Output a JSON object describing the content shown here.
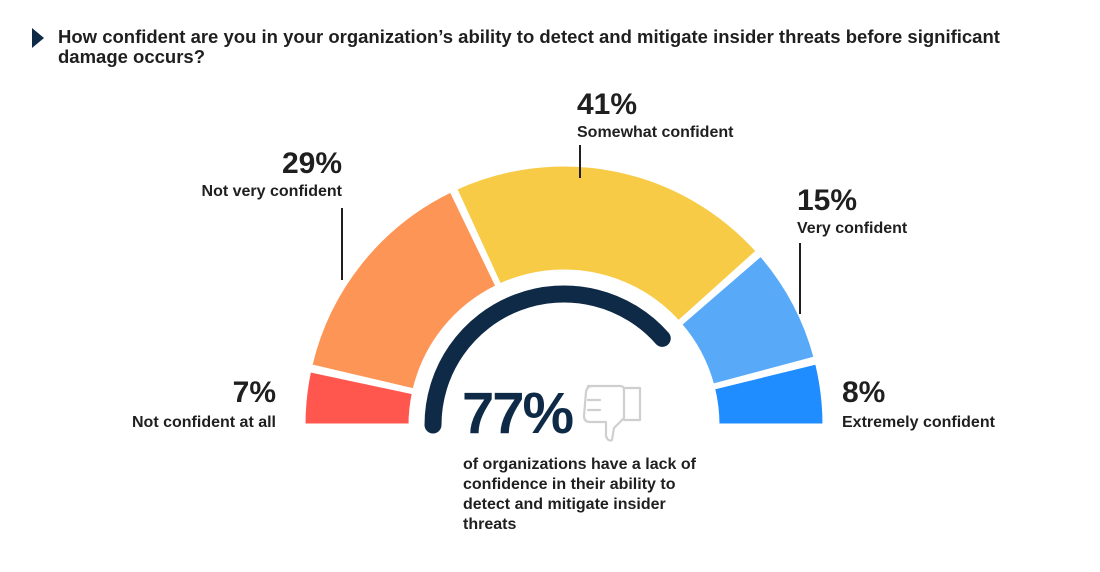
{
  "question": "How confident are you in your organization’s ability to detect and mitigate insider threats before significant damage occurs?",
  "chart_data": {
    "type": "pie",
    "style": "semi-donut gauge",
    "segments": [
      {
        "label": "Not confident at all",
        "value": 7,
        "display": "7%",
        "color": "#ff574d"
      },
      {
        "label": "Not very confident",
        "value": 29,
        "display": "29%",
        "color": "#fd9556"
      },
      {
        "label": "Somewhat confident",
        "value": 41,
        "display": "41%",
        "color": "#f8cb47"
      },
      {
        "label": "Very confident",
        "value": 15,
        "display": "15%",
        "color": "#58aaf9"
      },
      {
        "label": "Extremely confident",
        "value": 8,
        "display": "8%",
        "color": "#1f8cff"
      }
    ]
  },
  "callout": {
    "value": "77%",
    "value_fraction": 0.77,
    "text": "of organizations have a lack of confidence in their ability to detect and mitigate insider threats",
    "arc_color": "#0f2a47"
  },
  "icons": {
    "question_marker": "triangle-marker-icon",
    "callout": "thumbs-down-icon"
  }
}
